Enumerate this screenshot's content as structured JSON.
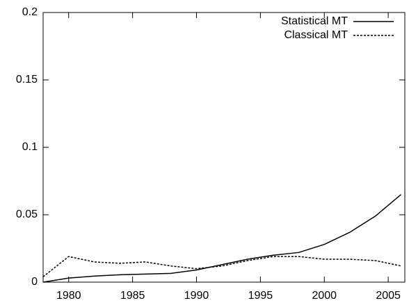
{
  "chart_data": {
    "type": "line",
    "x": [
      1978,
      1980,
      1982,
      1984,
      1986,
      1988,
      1990,
      1992,
      1994,
      1996,
      1998,
      2000,
      2002,
      2004,
      2006
    ],
    "series": [
      {
        "name": "Statistical MT",
        "color": "#000000",
        "dash": "solid",
        "values": [
          0.0,
          0.003,
          0.0045,
          0.0055,
          0.006,
          0.0065,
          0.009,
          0.013,
          0.017,
          0.02,
          0.022,
          0.028,
          0.037,
          0.049,
          0.065
        ]
      },
      {
        "name": "Classical MT",
        "color": "#000000",
        "dash": "dashed",
        "values": [
          0.004,
          0.019,
          0.015,
          0.014,
          0.015,
          0.012,
          0.01,
          0.012,
          0.016,
          0.019,
          0.019,
          0.017,
          0.017,
          0.016,
          0.012
        ]
      }
    ],
    "xlim": [
      1978,
      2006.3
    ],
    "xticks": [
      1980,
      1985,
      1990,
      1995,
      2000,
      2005
    ],
    "ylim": [
      0,
      0.2
    ],
    "yticks": [
      0,
      0.05,
      0.1,
      0.15,
      0.2
    ],
    "grid": false,
    "legend": "top-right"
  }
}
